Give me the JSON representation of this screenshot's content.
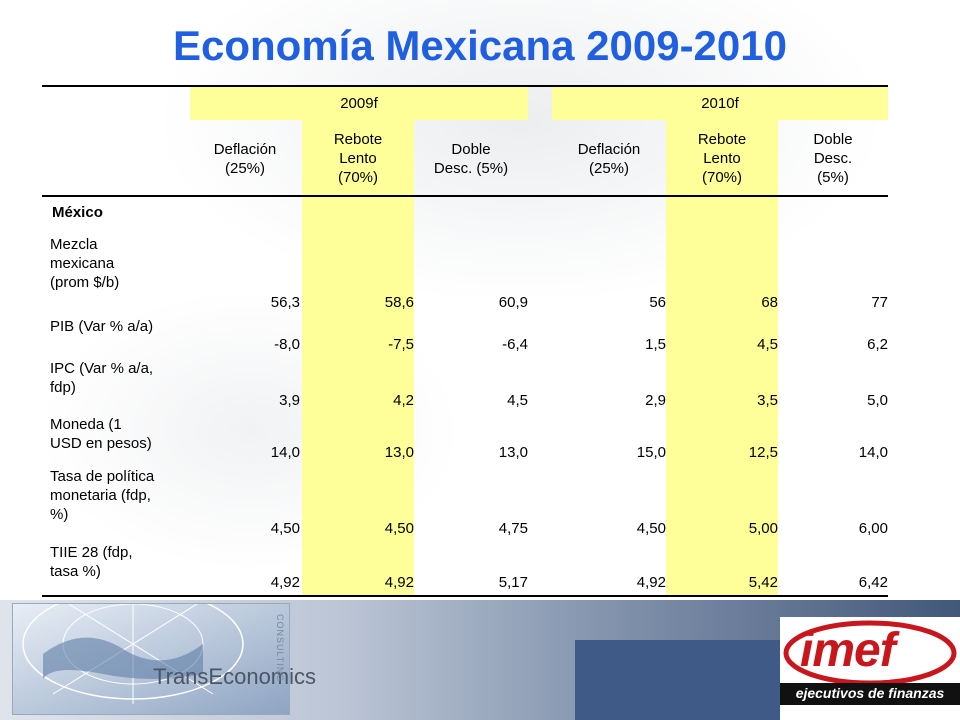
{
  "title": "Economía Mexicana 2009-2010",
  "years": [
    "2009f",
    "2010f"
  ],
  "scenarios": [
    [
      "Deflación",
      "(25%)"
    ],
    [
      "Rebote",
      "Lento",
      "(70%)"
    ],
    [
      "Doble",
      "Desc. (5%)"
    ],
    [
      "Deflación",
      "(25%)"
    ],
    [
      "Rebote",
      "Lento",
      "(70%)"
    ],
    [
      "Doble",
      "Desc.",
      "(5%)"
    ]
  ],
  "section_label": "México",
  "rows": [
    {
      "label": [
        "Mezcla",
        "mexicana",
        "(prom $/b)"
      ],
      "values": [
        "56,3",
        "58,6",
        "60,9",
        "56",
        "68",
        "77"
      ]
    },
    {
      "label": [
        "PIB (Var % a/a)"
      ],
      "values": [
        "-8,0",
        "-7,5",
        "-6,4",
        "1,5",
        "4,5",
        "6,2"
      ]
    },
    {
      "label": [
        "IPC (Var % a/a,",
        "fdp)"
      ],
      "values": [
        "3,9",
        "4,2",
        "4,5",
        "2,9",
        "3,5",
        "5,0"
      ]
    },
    {
      "label": [
        "Moneda (1",
        "USD en pesos)"
      ],
      "values": [
        "14,0",
        "13,0",
        "13,0",
        "15,0",
        "12,5",
        "14,0"
      ]
    },
    {
      "label": [
        "Tasa de política",
        "monetaria (fdp,",
        "%)"
      ],
      "values": [
        "4,50",
        "4,50",
        "4,75",
        "4,50",
        "5,00",
        "6,00"
      ]
    },
    {
      "label": [
        "TIIE 28 (fdp,",
        "tasa %)"
      ],
      "values": [
        "4,92",
        "4,92",
        "5,17",
        "4,92",
        "5,42",
        "6,42"
      ]
    }
  ],
  "logos": {
    "transeconomics": "TransEconomics",
    "transeconomics_sub": "CONSULTING",
    "imef": "imef",
    "imef_sub": "ejecutivos de finanzas"
  },
  "colors": {
    "title": "#1f5fe0",
    "highlight": "#ffff99"
  }
}
